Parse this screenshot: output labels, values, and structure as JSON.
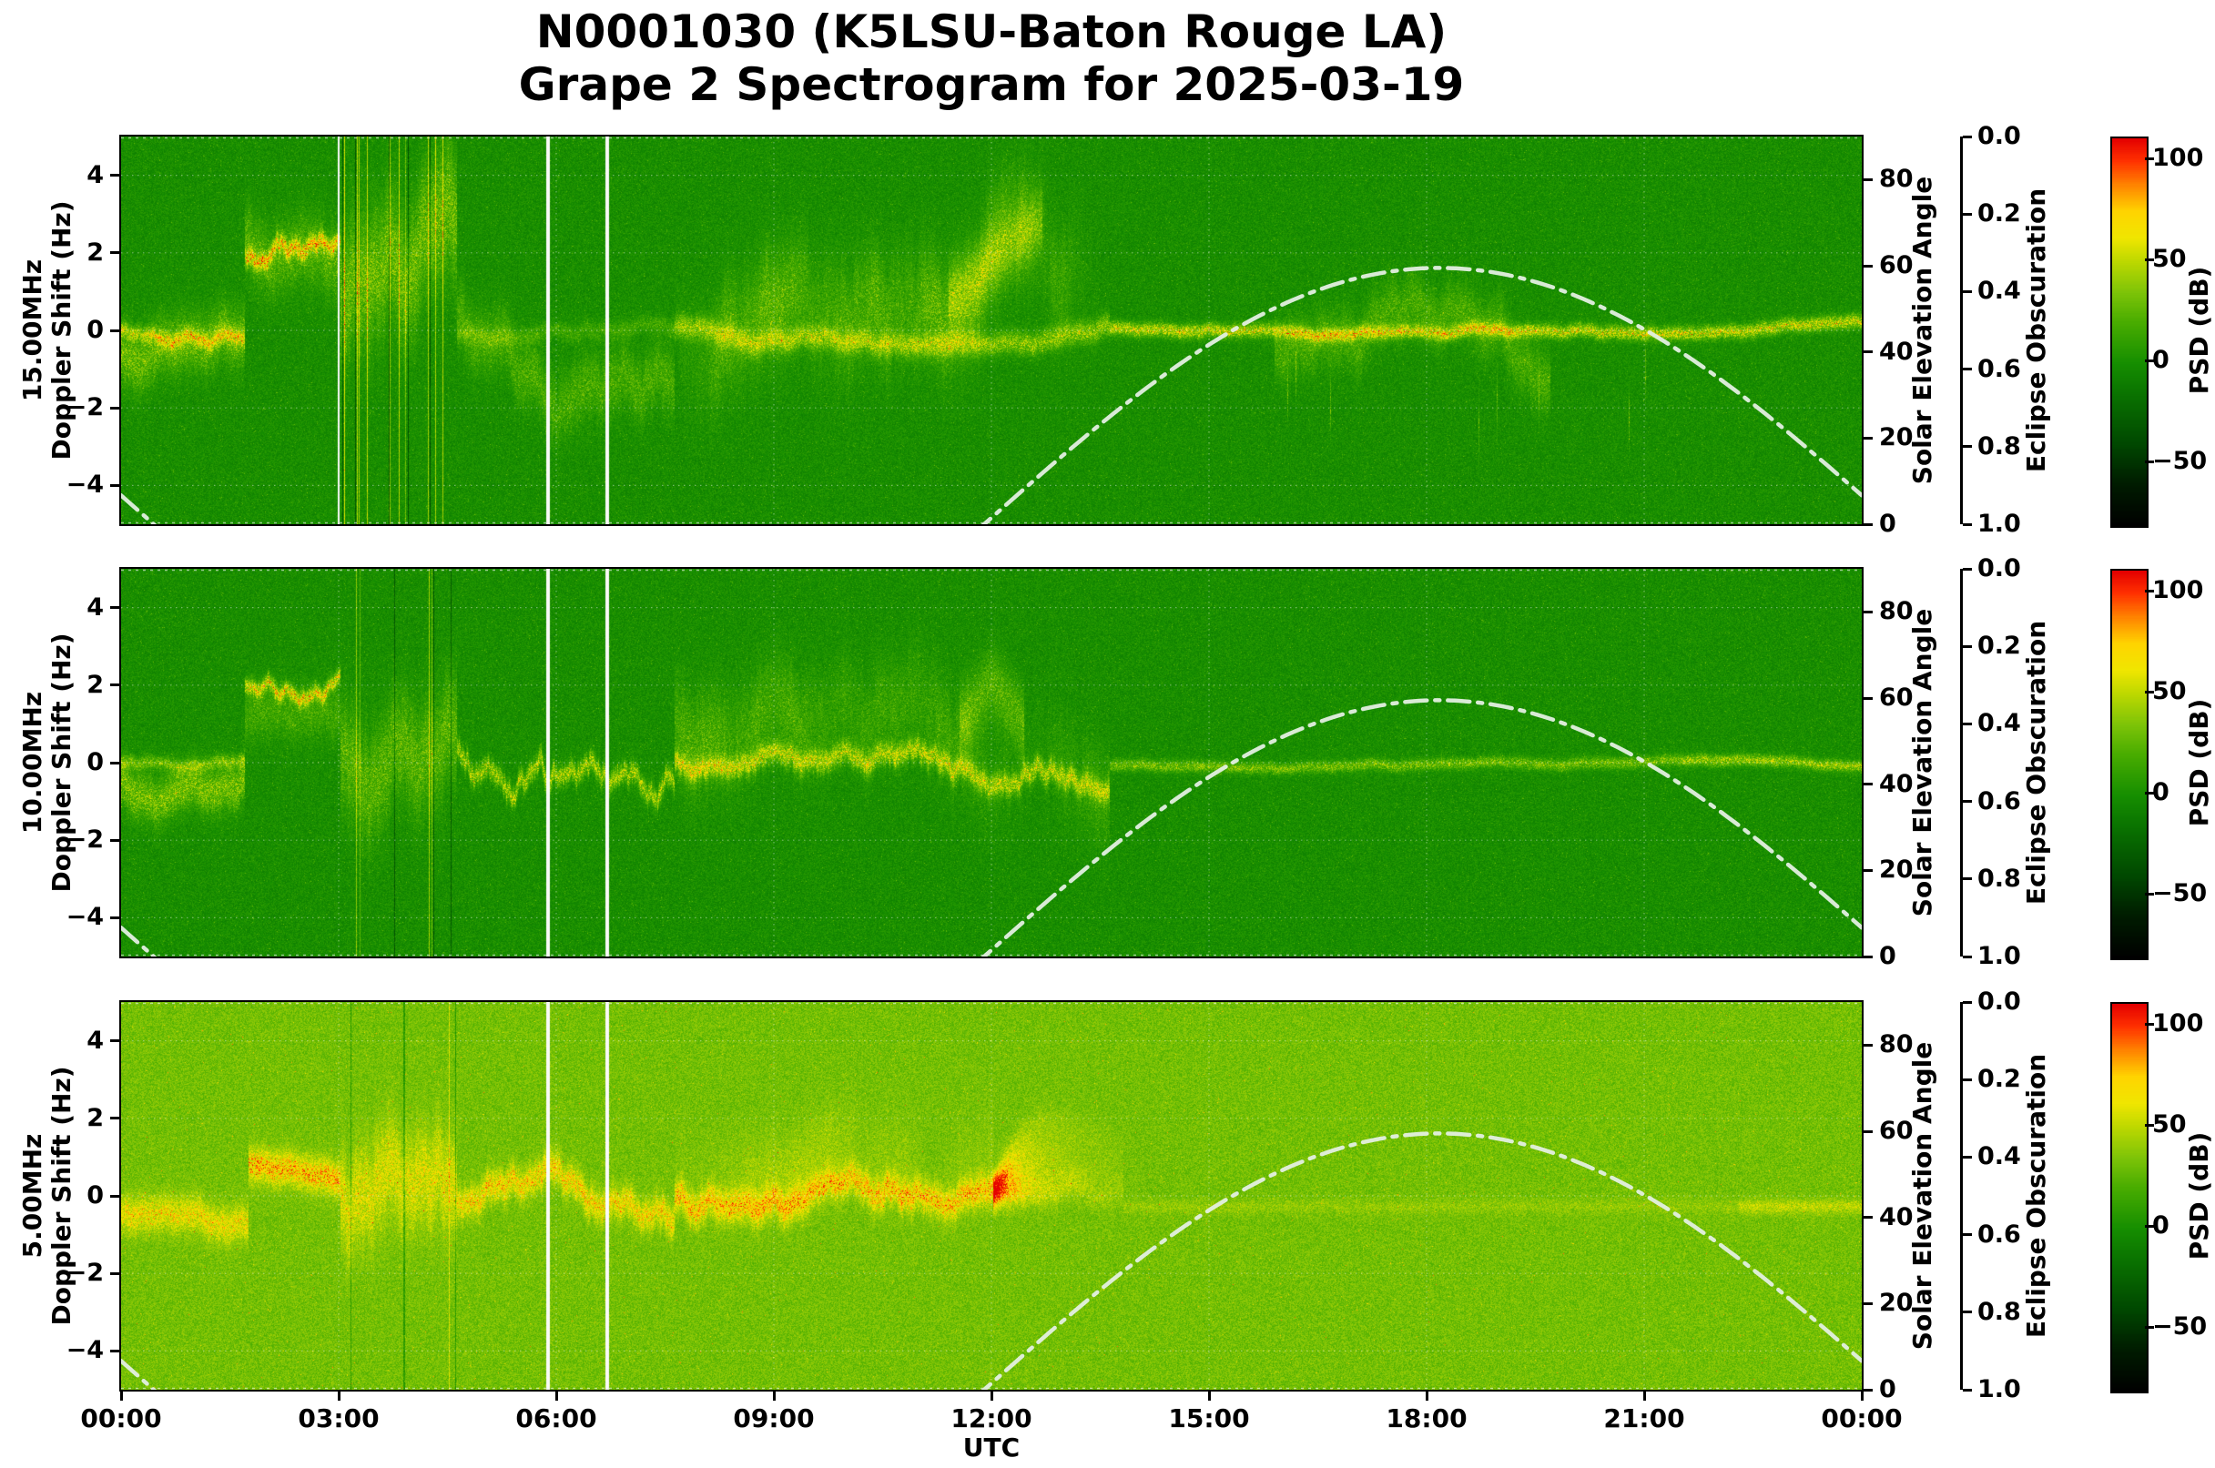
{
  "title": {
    "line1": "N0001030 (K5LSU-Baton Rouge LA)",
    "line2": "Grape 2 Spectrogram for 2025-03-19"
  },
  "axes": {
    "xlabel": "UTC",
    "x_tick_labels": [
      "00:00",
      "03:00",
      "06:00",
      "09:00",
      "12:00",
      "15:00",
      "18:00",
      "21:00",
      "00:00"
    ],
    "doppler_tick_labels": [
      "4",
      "2",
      "0",
      "−2",
      "−4"
    ],
    "solar": {
      "label": "Solar Elevation Angle",
      "tick_labels": [
        "80",
        "60",
        "40",
        "20",
        "0"
      ]
    },
    "eclipse": {
      "label": "Eclipse Obscuration",
      "tick_labels": [
        "0.0",
        "0.2",
        "0.4",
        "0.6",
        "0.8",
        "1.0"
      ]
    },
    "colorbar": {
      "label": "PSD (dB)",
      "tick_labels": [
        "100",
        "50",
        "0",
        "−50"
      ]
    }
  },
  "panels": [
    {
      "freq": "15.00MHz",
      "ylabel_line2": "Doppler Shift (Hz)"
    },
    {
      "freq": "10.00MHz",
      "ylabel_line2": "Doppler Shift (Hz)"
    },
    {
      "freq": "5.00MHz",
      "ylabel_line2": "Doppler Shift (Hz)"
    }
  ],
  "chart_data": [
    {
      "type": "heatmap",
      "title": "15.00MHz Doppler spectrogram",
      "x_axis": {
        "label": "UTC",
        "range_hours": [
          0,
          24
        ],
        "tick_labels": [
          "00:00",
          "03:00",
          "06:00",
          "09:00",
          "12:00",
          "15:00",
          "18:00",
          "21:00",
          "00:00"
        ]
      },
      "y_axis": {
        "label": "Doppler Shift (Hz)",
        "range": [
          -5,
          5
        ],
        "ticks": [
          -4,
          -2,
          0,
          2,
          4
        ]
      },
      "color_axis": {
        "label": "PSD (dB)",
        "ticks": [
          100,
          50,
          0,
          -50
        ],
        "approx_range": [
          -80,
          110
        ]
      },
      "background_psd_db": 0,
      "visible_features": [
        "bright carrier trace near 0 Hz across the day",
        "elevated trace near +2.5 Hz from ~01:40 to ~03:00 UTC",
        "chaotic vertical streaks ~03:00-04:40 UTC",
        "diffuse wave activity up to +/-2.5 Hz ~07:30-13:30 UTC",
        "tight stable trace after ~15:00 UTC with fuzz ~16:00-19:30"
      ],
      "white_data_gaps_utc": [
        "05:53",
        "06:42"
      ],
      "solar_elevation_overlay": {
        "label": "Solar Elevation Angle",
        "axis_range": [
          0,
          90
        ],
        "x_hours": [
          0,
          0.3,
          0.55,
          11.9,
          12.5,
          13,
          14,
          15,
          16,
          17,
          18,
          18.2,
          19,
          20,
          21,
          22,
          23,
          23.5,
          24
        ],
        "elevation_deg": [
          6.7,
          2.2,
          0,
          0,
          8.9,
          16.2,
          29.8,
          41.7,
          50.9,
          57.0,
          59.4,
          59.5,
          58.2,
          53.4,
          45.2,
          34.2,
          21.1,
          14.0,
          6.7
        ]
      },
      "eclipse_axis": {
        "label": "Eclipse Obscuration",
        "range": [
          0,
          1
        ],
        "curve_plotted": false
      }
    },
    {
      "type": "heatmap",
      "title": "10.00MHz Doppler spectrogram",
      "x_axis": {
        "label": "UTC",
        "range_hours": [
          0,
          24
        ],
        "tick_labels": [
          "00:00",
          "03:00",
          "06:00",
          "09:00",
          "12:00",
          "15:00",
          "18:00",
          "21:00",
          "00:00"
        ]
      },
      "y_axis": {
        "label": "Doppler Shift (Hz)",
        "range": [
          -5,
          5
        ],
        "ticks": [
          -4,
          -2,
          0,
          2,
          4
        ]
      },
      "color_axis": {
        "label": "PSD (dB)",
        "ticks": [
          100,
          50,
          0,
          -50
        ],
        "approx_range": [
          -80,
          110
        ]
      },
      "background_psd_db": 0,
      "visible_features": [
        "wandering carrier trace near 0 to -1 Hz through the night",
        "elevated trace near +1.8 Hz from ~01:40 to ~03:00 UTC",
        "vertical streaks ~03:00-04:40 UTC",
        "diffuse activity with peaks to +3 Hz ~08:00-13:00 UTC",
        "very tight faint trace near 0 Hz after ~14:00 UTC"
      ],
      "white_data_gaps_utc": [
        "05:53",
        "06:42"
      ],
      "solar_elevation_overlay": {
        "label": "Solar Elevation Angle",
        "axis_range": [
          0,
          90
        ],
        "x_hours": [
          0,
          0.3,
          0.55,
          11.9,
          12.5,
          13,
          14,
          15,
          16,
          17,
          18,
          18.2,
          19,
          20,
          21,
          22,
          23,
          23.5,
          24
        ],
        "elevation_deg": [
          6.7,
          2.2,
          0,
          0,
          8.9,
          16.2,
          29.8,
          41.7,
          50.9,
          57.0,
          59.4,
          59.5,
          58.2,
          53.4,
          45.2,
          34.2,
          21.1,
          14.0,
          6.7
        ]
      },
      "eclipse_axis": {
        "label": "Eclipse Obscuration",
        "range": [
          0,
          1
        ],
        "curve_plotted": false
      }
    },
    {
      "type": "heatmap",
      "title": "5.00MHz Doppler spectrogram",
      "x_axis": {
        "label": "UTC",
        "range_hours": [
          0,
          24
        ],
        "tick_labels": [
          "00:00",
          "03:00",
          "06:00",
          "09:00",
          "12:00",
          "15:00",
          "18:00",
          "21:00",
          "00:00"
        ]
      },
      "y_axis": {
        "label": "Doppler Shift (Hz)",
        "range": [
          -5,
          5
        ],
        "ticks": [
          -4,
          -2,
          0,
          2,
          4
        ]
      },
      "color_axis": {
        "label": "PSD (dB)",
        "ticks": [
          100,
          50,
          0,
          -50
        ],
        "approx_range": [
          -80,
          110
        ]
      },
      "background_psd_db": 32,
      "visible_features": [
        "bright yellow-green noise floor over whole panel",
        "orange carrier trace near -0.5 Hz through the night",
        "flat elevated band near +1 Hz ~01:45-03:00 UTC",
        "fan of branches rising to +3 Hz just after 12:00 UTC",
        "trace fades after ~13:30 UTC, faint line returns ~22:30-24:00"
      ],
      "white_data_gaps_utc": [
        "05:53",
        "06:42"
      ],
      "solar_elevation_overlay": {
        "label": "Solar Elevation Angle",
        "axis_range": [
          0,
          90
        ],
        "x_hours": [
          0,
          0.3,
          0.55,
          11.9,
          12.5,
          13,
          14,
          15,
          16,
          17,
          18,
          18.2,
          19,
          20,
          21,
          22,
          23,
          23.5,
          24
        ],
        "elevation_deg": [
          6.7,
          2.2,
          0,
          0,
          8.9,
          16.2,
          29.8,
          41.7,
          50.9,
          57.0,
          59.4,
          59.5,
          58.2,
          53.4,
          45.2,
          34.2,
          21.1,
          14.0,
          6.7
        ]
      },
      "eclipse_axis": {
        "label": "Eclipse Obscuration",
        "range": [
          0,
          1
        ],
        "curve_plotted": false
      }
    }
  ]
}
